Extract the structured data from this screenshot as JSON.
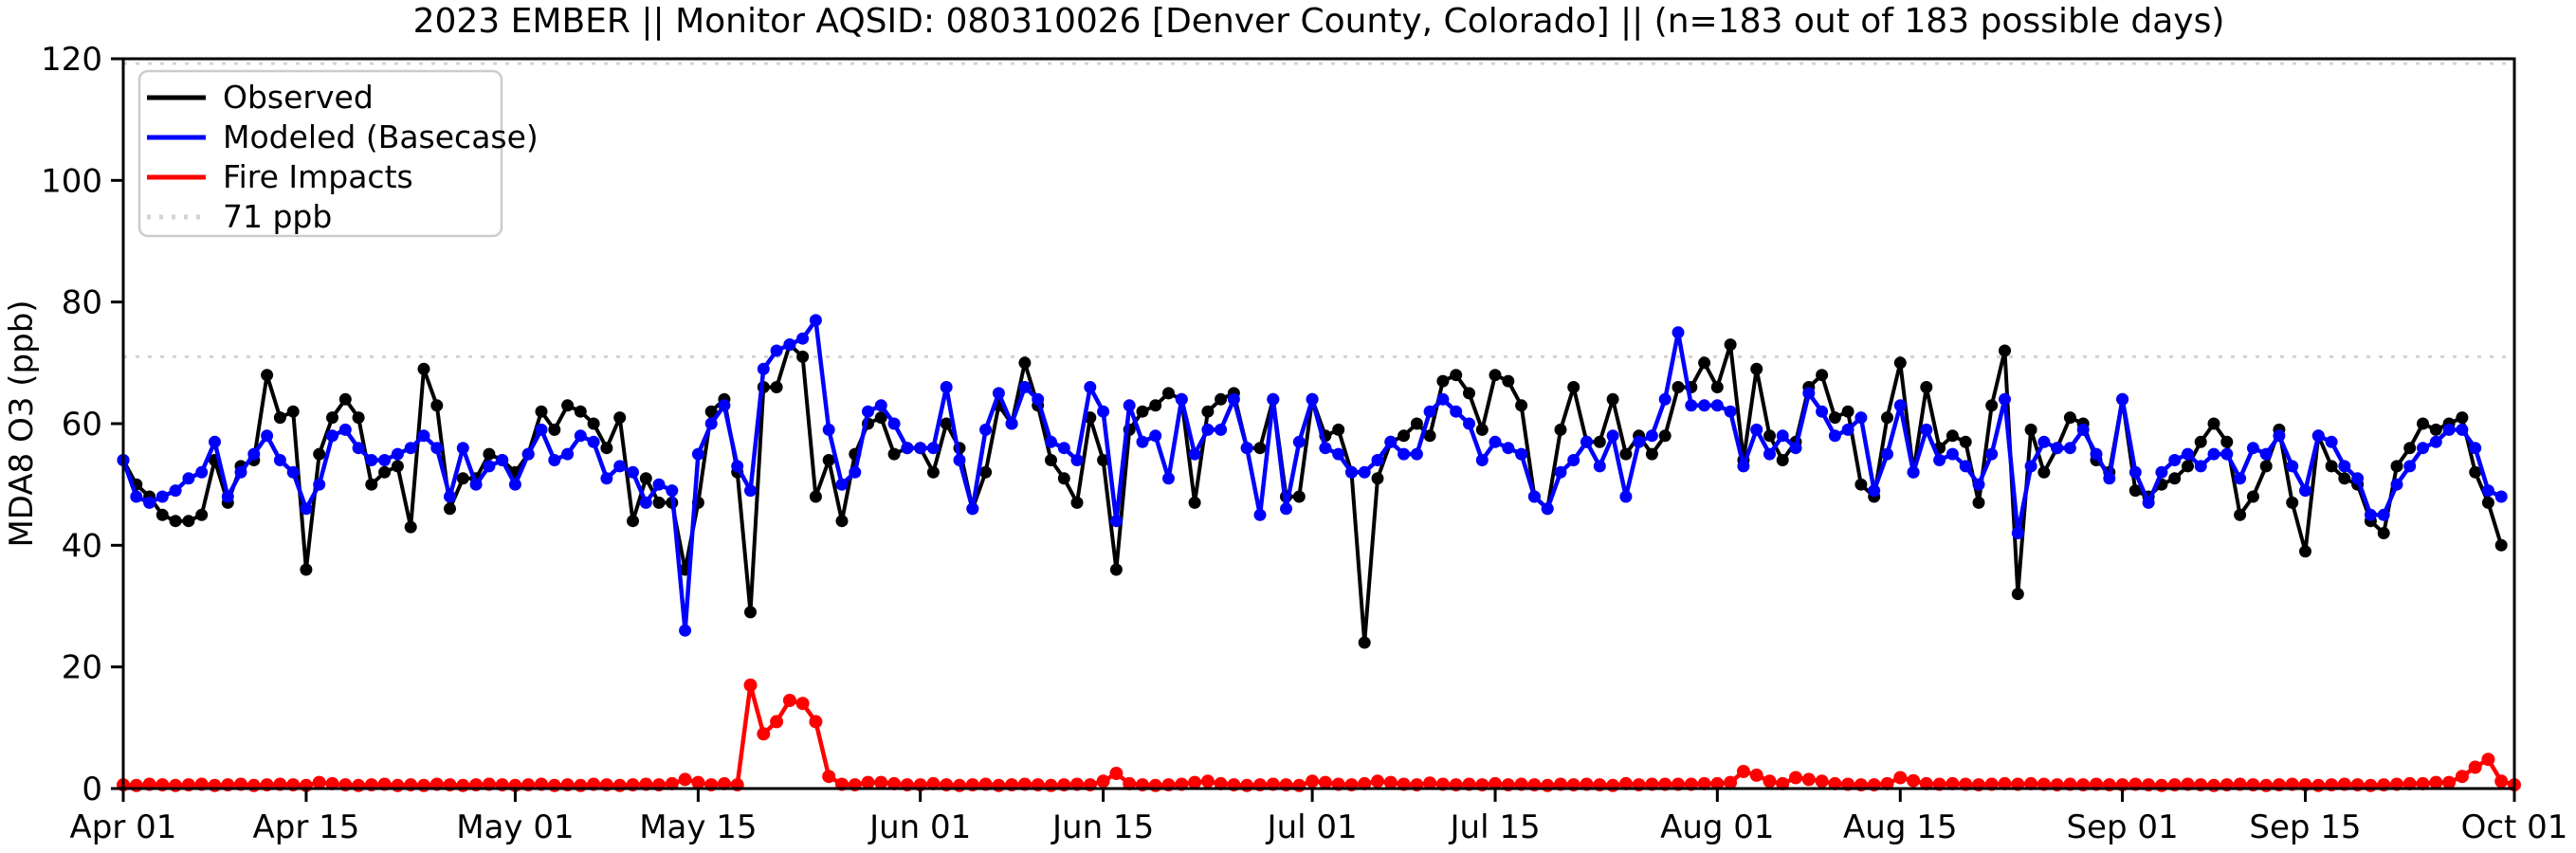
{
  "chart_data": {
    "type": "line",
    "title": "2023 EMBER || Monitor AQSID: 080310026 [Denver County, Colorado] || (n=183 out of 183 possible days)",
    "ylabel": "MDA8 O3 (ppb)",
    "ylim": [
      0,
      120
    ],
    "yticks": [
      0,
      20,
      40,
      60,
      80,
      100,
      120
    ],
    "x_description": "Daily MDA8 ozone, Apr 01 - Sep 30 2023 (183 days), x axis spans Apr 01 to Oct 01",
    "xlim_days": [
      0,
      183
    ],
    "xticks": [
      {
        "day": 0,
        "label": "Apr 01"
      },
      {
        "day": 14,
        "label": "Apr 15"
      },
      {
        "day": 30,
        "label": "May 01"
      },
      {
        "day": 44,
        "label": "May 15"
      },
      {
        "day": 61,
        "label": "Jun 01"
      },
      {
        "day": 75,
        "label": "Jun 15"
      },
      {
        "day": 91,
        "label": "Jul 01"
      },
      {
        "day": 105,
        "label": "Jul 15"
      },
      {
        "day": 122,
        "label": "Aug 01"
      },
      {
        "day": 136,
        "label": "Aug 15"
      },
      {
        "day": 153,
        "label": "Sep 01"
      },
      {
        "day": 167,
        "label": "Sep 15"
      },
      {
        "day": 183,
        "label": "Oct 01"
      }
    ],
    "threshold": {
      "value": 71,
      "label": "71 ppb",
      "color": "#d3d3d3",
      "style": "dotted"
    },
    "top_reference_line": {
      "value": 120,
      "color": "#d3d3d3",
      "style": "dotted"
    },
    "legend_position": "upper left",
    "grid": false,
    "series": [
      {
        "name": "Observed",
        "color": "#000000",
        "values": [
          54,
          50,
          48,
          45,
          44,
          44,
          45,
          54,
          47,
          53,
          54,
          68,
          61,
          62,
          36,
          55,
          61,
          64,
          61,
          50,
          52,
          53,
          43,
          69,
          63,
          46,
          51,
          51,
          55,
          54,
          52,
          55,
          62,
          59,
          63,
          62,
          60,
          56,
          61,
          44,
          51,
          47,
          47,
          36,
          47,
          62,
          64,
          52,
          29,
          66,
          66,
          73,
          71,
          48,
          54,
          44,
          55,
          60,
          61,
          55,
          56,
          56,
          52,
          60,
          56,
          46,
          52,
          63,
          60,
          70,
          63,
          54,
          51,
          47,
          61,
          54,
          36,
          59,
          62,
          63,
          65,
          64,
          47,
          62,
          64,
          65,
          56,
          56,
          64,
          48,
          48,
          64,
          58,
          59,
          52,
          24,
          51,
          57,
          58,
          60,
          58,
          67,
          68,
          65,
          59,
          68,
          67,
          63,
          48,
          46,
          59,
          66,
          57,
          57,
          64,
          55,
          58,
          55,
          58,
          66,
          66,
          70,
          66,
          73,
          54,
          69,
          58,
          54,
          57,
          66,
          68,
          61,
          62,
          50,
          48,
          61,
          70,
          52,
          66,
          56,
          58,
          57,
          47,
          63,
          72,
          32,
          59,
          52,
          56,
          61,
          60,
          54,
          52,
          64,
          49,
          48,
          50,
          51,
          53,
          57,
          60,
          57,
          45,
          48,
          53,
          59,
          47,
          39,
          58,
          53,
          51,
          50,
          44,
          42,
          53,
          56,
          60,
          59,
          60,
          61,
          52,
          47,
          40
        ]
      },
      {
        "name": "Modeled (Basecase)",
        "color": "#0000ff",
        "values": [
          54,
          48,
          47,
          48,
          49,
          51,
          52,
          57,
          48,
          52,
          55,
          58,
          54,
          52,
          46,
          50,
          58,
          59,
          56,
          54,
          54,
          55,
          56,
          58,
          56,
          48,
          56,
          50,
          53,
          54,
          50,
          55,
          59,
          54,
          55,
          58,
          57,
          51,
          53,
          52,
          47,
          50,
          49,
          26,
          55,
          60,
          63,
          53,
          49,
          69,
          72,
          73,
          74,
          77,
          59,
          50,
          52,
          62,
          63,
          60,
          56,
          56,
          56,
          66,
          54,
          46,
          59,
          65,
          60,
          66,
          64,
          57,
          56,
          54,
          66,
          62,
          44,
          63,
          57,
          58,
          51,
          64,
          55,
          59,
          59,
          64,
          56,
          45,
          64,
          46,
          57,
          64,
          56,
          55,
          52,
          52,
          54,
          57,
          55,
          55,
          62,
          64,
          62,
          60,
          54,
          57,
          56,
          55,
          48,
          46,
          52,
          54,
          57,
          53,
          58,
          48,
          57,
          58,
          64,
          75,
          63,
          63,
          63,
          62,
          53,
          59,
          55,
          58,
          56,
          65,
          62,
          58,
          59,
          61,
          49,
          55,
          63,
          52,
          59,
          54,
          55,
          53,
          50,
          55,
          64,
          42,
          53,
          57,
          56,
          56,
          59,
          55,
          51,
          64,
          52,
          47,
          52,
          54,
          55,
          53,
          55,
          55,
          51,
          56,
          55,
          58,
          53,
          49,
          58,
          57,
          53,
          51,
          45,
          45,
          50,
          53,
          56,
          57,
          59,
          59,
          56,
          49,
          48
        ]
      },
      {
        "name": "Fire Impacts",
        "color": "#ff0000",
        "values": [
          0.6,
          0.5,
          0.7,
          0.6,
          0.5,
          0.6,
          0.7,
          0.5,
          0.6,
          0.7,
          0.5,
          0.6,
          0.7,
          0.6,
          0.5,
          1.0,
          0.8,
          0.6,
          0.5,
          0.6,
          0.7,
          0.5,
          0.6,
          0.5,
          0.7,
          0.6,
          0.5,
          0.6,
          0.7,
          0.6,
          0.5,
          0.6,
          0.7,
          0.5,
          0.6,
          0.5,
          0.7,
          0.6,
          0.5,
          0.6,
          0.7,
          0.6,
          0.8,
          1.5,
          1.0,
          0.6,
          0.8,
          0.6,
          17,
          9,
          11,
          14.5,
          14,
          11,
          2,
          0.7,
          0.6,
          1.0,
          1.0,
          0.8,
          0.6,
          0.6,
          0.8,
          0.6,
          0.5,
          0.6,
          0.7,
          0.5,
          0.6,
          0.7,
          0.6,
          0.5,
          0.6,
          0.7,
          0.6,
          1.2,
          2.5,
          0.8,
          0.6,
          0.5,
          0.6,
          0.7,
          1.0,
          1.2,
          0.8,
          0.6,
          0.5,
          0.6,
          0.7,
          0.6,
          0.5,
          1.2,
          1.0,
          0.7,
          0.6,
          0.8,
          1.2,
          1.0,
          0.7,
          0.6,
          0.9,
          0.7,
          0.6,
          0.7,
          0.6,
          0.8,
          0.6,
          0.7,
          0.6,
          0.5,
          0.7,
          0.6,
          0.7,
          0.6,
          0.5,
          0.8,
          0.6,
          0.7,
          0.7,
          0.7,
          0.7,
          0.8,
          0.8,
          1.0,
          2.8,
          2.2,
          1.2,
          0.8,
          1.8,
          1.5,
          1.2,
          0.8,
          0.7,
          0.6,
          0.6,
          0.8,
          1.8,
          1.3,
          0.8,
          0.7,
          0.8,
          0.7,
          0.6,
          0.7,
          0.8,
          0.7,
          0.8,
          0.7,
          0.6,
          0.7,
          0.6,
          0.7,
          0.6,
          0.6,
          0.7,
          0.6,
          0.5,
          0.6,
          0.7,
          0.6,
          0.5,
          0.6,
          0.7,
          0.6,
          0.5,
          0.6,
          0.7,
          0.6,
          0.5,
          0.6,
          0.7,
          0.6,
          0.5,
          0.6,
          0.7,
          0.8,
          0.8,
          1.0,
          1.0,
          2.0,
          3.5,
          4.8,
          1.2,
          0.6
        ]
      }
    ],
    "legend_items": [
      "Observed",
      "Modeled (Basecase)",
      "Fire Impacts",
      "71 ppb"
    ]
  }
}
